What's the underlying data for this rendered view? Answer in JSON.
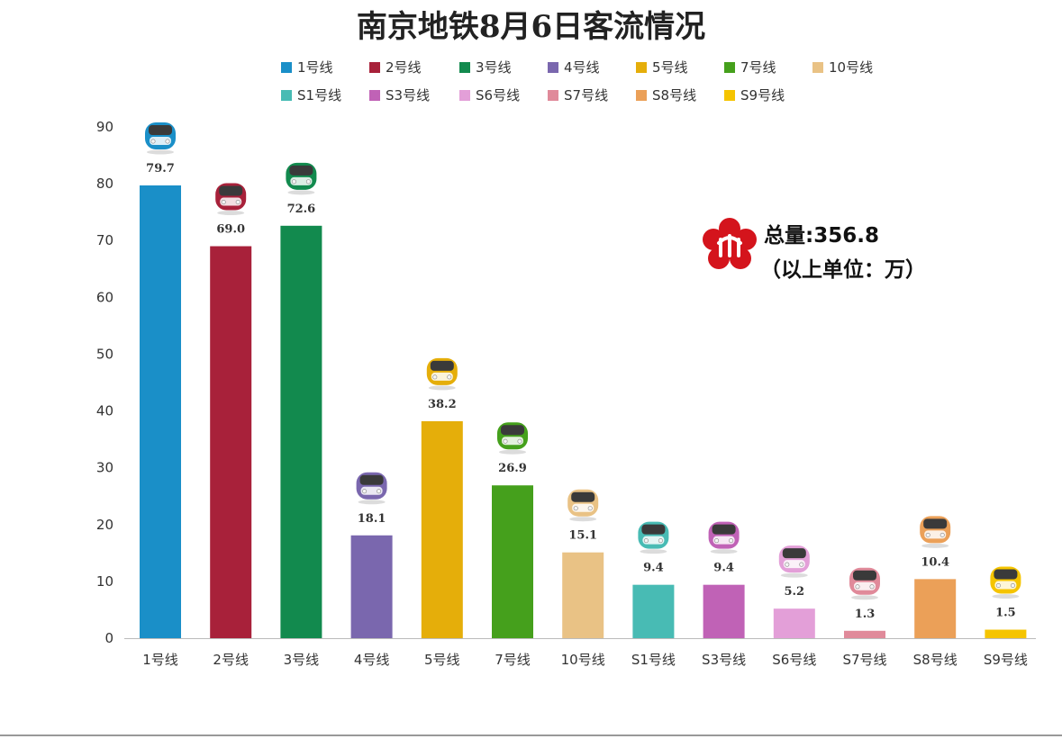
{
  "chart_data": {
    "type": "bar",
    "title": "南京地铁8月6日客流情况",
    "categories": [
      "1号线",
      "2号线",
      "3号线",
      "4号线",
      "5号线",
      "7号线",
      "10号线",
      "S1号线",
      "S3号线",
      "S6号线",
      "S7号线",
      "S8号线",
      "S9号线"
    ],
    "values": [
      79.7,
      69.0,
      72.6,
      18.1,
      38.2,
      26.9,
      15.1,
      9.4,
      9.4,
      5.2,
      1.3,
      10.4,
      1.5
    ],
    "data_labels": [
      "79.7",
      "69.0",
      "72.6",
      "18.1",
      "38.2",
      "26.9",
      "15.1",
      "9.4",
      "9.4",
      "5.2",
      "1.3",
      "10.4",
      "1.5"
    ],
    "colors": [
      "#1a8fc8",
      "#a8213a",
      "#128a4e",
      "#7a67ae",
      "#e5ae0a",
      "#45a01c",
      "#e9c285",
      "#48bbb4",
      "#c062b6",
      "#e39fd8",
      "#e08a9a",
      "#eba058",
      "#f5c400"
    ],
    "legend": [
      "1号线",
      "2号线",
      "3号线",
      "4号线",
      "5号线",
      "7号线",
      "10号线",
      "S1号线",
      "S3号线",
      "S6号线",
      "S7号线",
      "S8号线",
      "S9号线"
    ],
    "legend_placement": "top",
    "yticks": [
      "0",
      "10",
      "20",
      "30",
      "40",
      "50",
      "60",
      "70",
      "80",
      "90"
    ],
    "ylim": [
      0,
      90
    ],
    "grid": false,
    "xlabel": "",
    "ylabel": ""
  },
  "annotation": {
    "total_text": "总量:356.8",
    "unit_text": "（以上单位：万）",
    "logo_icon": "nanjing-metro-logo-icon"
  },
  "icons": {
    "bar_top": "train-head-icon"
  }
}
